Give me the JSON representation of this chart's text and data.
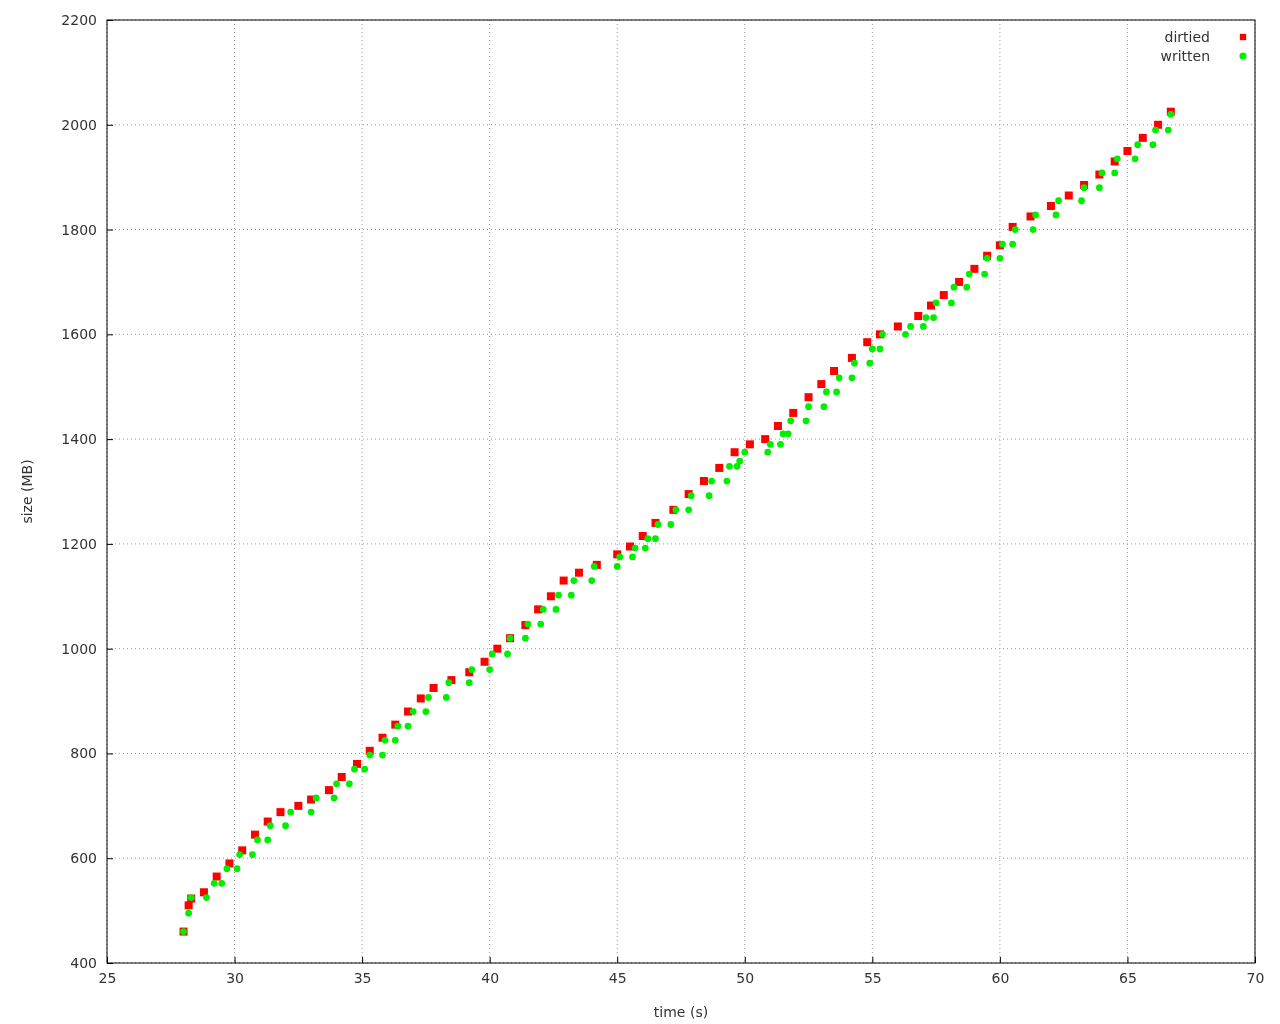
{
  "chart_data": {
    "type": "scatter",
    "xlabel": "time (s)",
    "ylabel": "size (MB)",
    "xlim": [
      25,
      70
    ],
    "ylim": [
      400,
      2200
    ],
    "xticks": [
      25,
      30,
      35,
      40,
      45,
      50,
      55,
      60,
      65,
      70
    ],
    "yticks": [
      400,
      600,
      800,
      1000,
      1200,
      1400,
      1600,
      1800,
      2000,
      2200
    ],
    "grid": true,
    "legend": "top right",
    "series": [
      {
        "name": "dirtied",
        "color": "#ff0000",
        "marker": "square",
        "x": [
          28.0,
          28.2,
          28.3,
          28.8,
          29.3,
          29.8,
          30.3,
          30.8,
          31.3,
          31.8,
          32.5,
          33.0,
          33.7,
          34.2,
          34.8,
          35.3,
          35.8,
          36.3,
          36.8,
          37.3,
          37.8,
          38.5,
          39.2,
          39.8,
          40.3,
          40.8,
          41.4,
          41.9,
          42.4,
          42.9,
          43.5,
          44.2,
          45.0,
          45.5,
          46.0,
          46.5,
          47.2,
          47.8,
          48.4,
          49.0,
          49.6,
          50.2,
          50.8,
          51.3,
          51.9,
          52.5,
          53.0,
          53.5,
          54.2,
          54.8,
          55.3,
          56.0,
          56.8,
          57.3,
          57.8,
          58.4,
          59.0,
          59.5,
          60.0,
          60.5,
          61.2,
          62.0,
          62.7,
          63.3,
          63.9,
          64.5,
          65.0,
          65.6,
          66.2,
          66.7
        ],
        "values": [
          460,
          510,
          523,
          535,
          565,
          590,
          615,
          645,
          670,
          688,
          700,
          712,
          730,
          755,
          780,
          805,
          830,
          855,
          880,
          905,
          925,
          940,
          955,
          975,
          1000,
          1020,
          1045,
          1075,
          1100,
          1130,
          1145,
          1160,
          1180,
          1195,
          1215,
          1240,
          1265,
          1295,
          1320,
          1345,
          1375,
          1390,
          1400,
          1425,
          1450,
          1480,
          1505,
          1530,
          1555,
          1585,
          1600,
          1615,
          1635,
          1655,
          1675,
          1700,
          1725,
          1750,
          1770,
          1805,
          1825,
          1845,
          1865,
          1885,
          1905,
          1930,
          1950,
          1975,
          2000,
          2025
        ]
      },
      {
        "name": "written",
        "color": "#00ee00",
        "marker": "circle",
        "x": [
          28.0,
          28.2,
          28.3,
          28.9,
          29.2,
          29.5,
          29.7,
          30.1,
          30.2,
          30.7,
          30.9,
          31.3,
          31.4,
          32.0,
          32.2,
          33.0,
          33.2,
          33.9,
          34.0,
          34.5,
          34.7,
          35.1,
          35.3,
          35.8,
          35.9,
          36.3,
          36.4,
          36.8,
          37.0,
          37.5,
          37.6,
          38.3,
          38.4,
          39.2,
          39.3,
          40.0,
          40.1,
          40.7,
          40.8,
          41.4,
          41.5,
          42.0,
          42.1,
          42.6,
          42.7,
          43.2,
          43.3,
          44.0,
          44.1,
          45.0,
          45.1,
          45.6,
          45.7,
          46.1,
          46.2,
          46.5,
          46.6,
          47.1,
          47.3,
          47.8,
          47.9,
          48.6,
          48.7,
          49.3,
          49.4,
          49.7,
          49.8,
          50.0,
          50.9,
          51.0,
          51.4,
          51.5,
          51.7,
          51.8,
          52.4,
          52.5,
          53.1,
          53.2,
          53.6,
          53.7,
          54.2,
          54.3,
          54.9,
          55.0,
          55.3,
          55.4,
          56.3,
          56.5,
          57.0,
          57.1,
          57.4,
          57.5,
          58.1,
          58.2,
          58.7,
          58.8,
          59.4,
          59.5,
          60.0,
          60.1,
          60.5,
          60.6,
          61.3,
          61.4,
          62.2,
          62.3,
          63.2,
          63.3,
          63.9,
          64.0,
          64.5,
          64.6,
          65.3,
          65.4,
          66.0,
          66.1,
          66.6,
          66.7
        ],
        "values": [
          460,
          495,
          525,
          525,
          552,
          552,
          580,
          580,
          607,
          607,
          635,
          635,
          662,
          662,
          688,
          688,
          715,
          715,
          742,
          742,
          770,
          770,
          797,
          797,
          825,
          825,
          852,
          852,
          880,
          880,
          907,
          907,
          935,
          935,
          960,
          960,
          990,
          990,
          1020,
          1020,
          1047,
          1047,
          1075,
          1075,
          1102,
          1102,
          1130,
          1130,
          1157,
          1157,
          1175,
          1175,
          1192,
          1192,
          1210,
          1210,
          1237,
          1237,
          1265,
          1265,
          1292,
          1292,
          1320,
          1320,
          1348,
          1348,
          1358,
          1375,
          1375,
          1390,
          1390,
          1410,
          1410,
          1435,
          1435,
          1462,
          1462,
          1490,
          1490,
          1517,
          1517,
          1545,
          1545,
          1572,
          1572,
          1600,
          1600,
          1615,
          1615,
          1632,
          1632,
          1660,
          1660,
          1690,
          1690,
          1715,
          1715,
          1745,
          1745,
          1772,
          1772,
          1800,
          1800,
          1828,
          1828,
          1855,
          1855,
          1880,
          1880,
          1908,
          1908,
          1935,
          1935,
          1962,
          1962,
          1990,
          1990,
          2020
        ]
      }
    ]
  }
}
